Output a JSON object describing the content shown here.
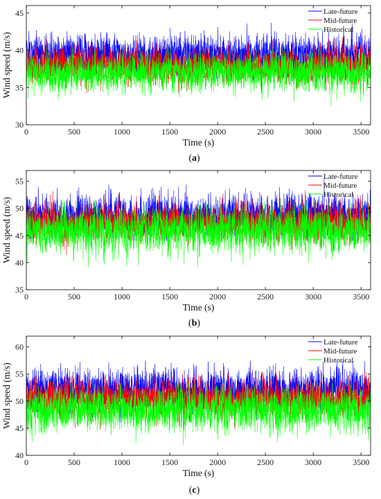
{
  "colors": {
    "late": "#0000ff",
    "mid": "#ff0000",
    "hist": "#00ff00"
  },
  "chart_data": [
    {
      "type": "line",
      "panel_label": [
        "(",
        "a",
        ")"
      ],
      "xlabel": "Time (s)",
      "ylabel": "Wind speed (m/s)",
      "xlim": [
        0,
        3600
      ],
      "ylim": [
        30,
        46
      ],
      "xticks": [
        0,
        500,
        1000,
        1500,
        2000,
        2500,
        3000,
        3500
      ],
      "yticks": [
        30,
        35,
        40,
        45
      ],
      "legend_position": "top-right",
      "series": [
        {
          "name": "Late-future",
          "color_key": "late",
          "mean": 39.4,
          "std": 1.25,
          "min": 36.0,
          "max": 44.9
        },
        {
          "name": "Mid-future",
          "color_key": "mid",
          "mean": 38.0,
          "std": 1.15,
          "min": 32.3,
          "max": 42.3
        },
        {
          "name": "Historical",
          "color_key": "hist",
          "mean": 37.0,
          "std": 1.2,
          "min": 32.0,
          "max": 40.5
        }
      ]
    },
    {
      "type": "line",
      "panel_label": [
        "(",
        "b",
        ")"
      ],
      "xlabel": "Time (s)",
      "ylabel": "Wind speed (m/s)",
      "xlim": [
        0,
        3600
      ],
      "ylim": [
        35,
        57
      ],
      "xticks": [
        0,
        500,
        1000,
        1500,
        2000,
        2500,
        3000,
        3500
      ],
      "yticks": [
        35,
        40,
        45,
        50,
        55
      ],
      "legend_position": "top-right",
      "series": [
        {
          "name": "Late-future",
          "color_key": "late",
          "mean": 48.8,
          "std": 1.8,
          "min": 44.0,
          "max": 55.8
        },
        {
          "name": "Mid-future",
          "color_key": "mid",
          "mean": 47.5,
          "std": 1.6,
          "min": 40.8,
          "max": 54.6
        },
        {
          "name": "Historical",
          "color_key": "hist",
          "mean": 46.0,
          "std": 1.9,
          "min": 38.0,
          "max": 51.5
        }
      ]
    },
    {
      "type": "line",
      "panel_label": [
        "(",
        "c",
        ")"
      ],
      "xlabel": "Time (s)",
      "ylabel": "Wind speed (m/s)",
      "xlim": [
        0,
        3600
      ],
      "ylim": [
        40,
        62
      ],
      "xticks": [
        0,
        500,
        1000,
        1500,
        2000,
        2500,
        3000,
        3500
      ],
      "yticks": [
        40,
        45,
        50,
        55,
        60
      ],
      "legend_position": "top-right",
      "series": [
        {
          "name": "Late-future",
          "color_key": "late",
          "mean": 52.0,
          "std": 1.8,
          "min": 46.0,
          "max": 57.5
        },
        {
          "name": "Mid-future",
          "color_key": "mid",
          "mean": 50.5,
          "std": 1.7,
          "min": 43.5,
          "max": 55.5
        },
        {
          "name": "Historical",
          "color_key": "hist",
          "mean": 48.5,
          "std": 1.9,
          "min": 41.0,
          "max": 53.5
        }
      ]
    }
  ]
}
